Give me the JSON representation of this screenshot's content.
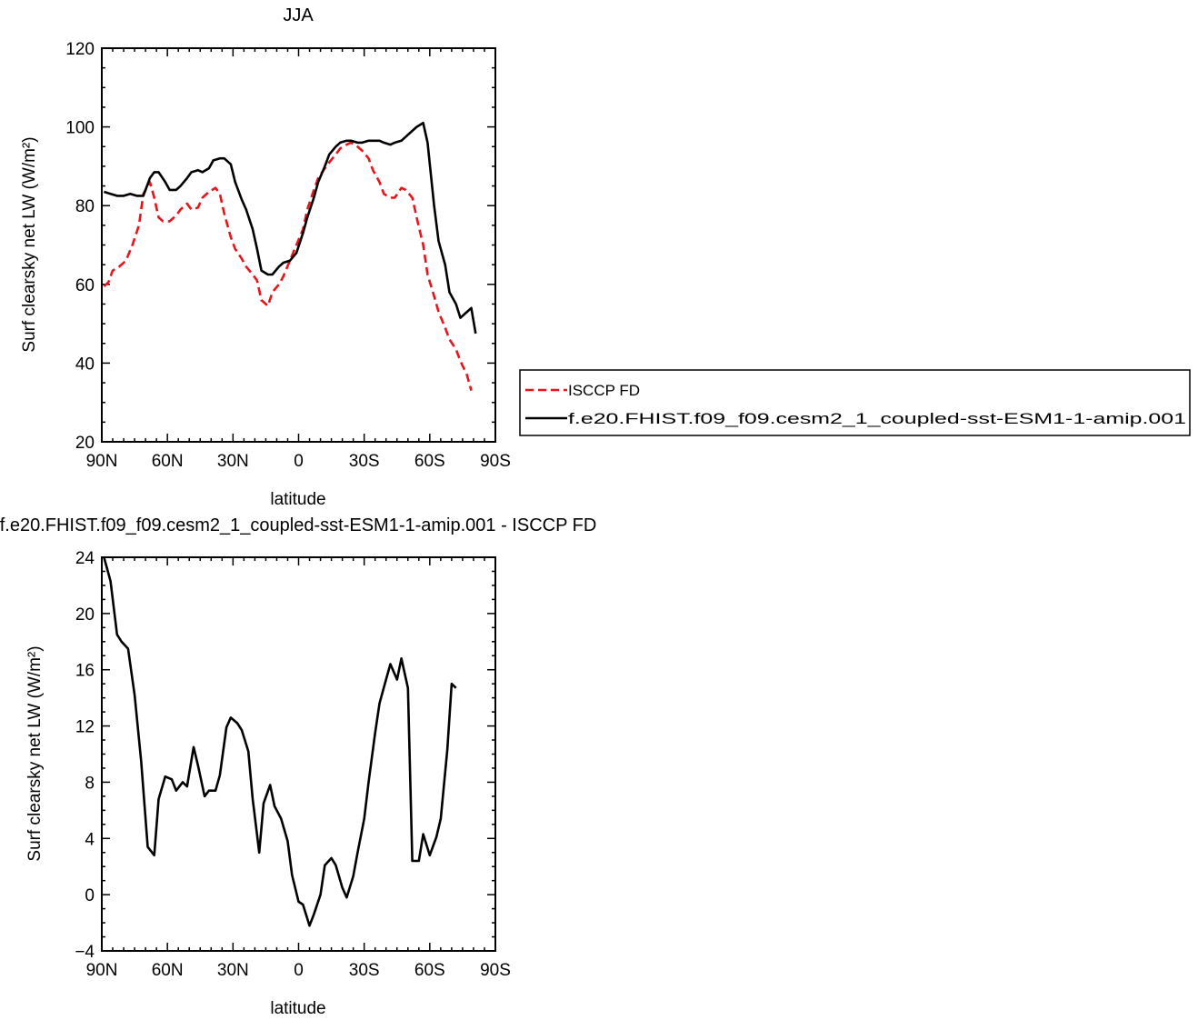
{
  "chart_data": [
    {
      "type": "line",
      "title": "JJA",
      "xlabel": "latitude",
      "ylabel": "Surf clearsky net LW (W/m²)",
      "xlim": [
        90,
        -90
      ],
      "ylim": [
        20,
        120
      ],
      "xticks": [
        90,
        60,
        30,
        0,
        -30,
        -60,
        -90
      ],
      "xtick_labels": [
        "90N",
        "60N",
        "30N",
        "0",
        "30S",
        "60S",
        "90S"
      ],
      "yticks": [
        20,
        40,
        60,
        80,
        100,
        120
      ],
      "ytick_labels": [
        "20",
        "40",
        "60",
        "80",
        "100",
        "120"
      ],
      "legend_position": "right",
      "series": [
        {
          "name": "ISCCP FD",
          "color": "#e8141b",
          "style": "dashed",
          "points": [
            [
              89,
              59.5
            ],
            [
              87,
              60.5
            ],
            [
              85,
              63.5
            ],
            [
              82,
              64.5
            ],
            [
              79,
              66
            ],
            [
              76,
              70
            ],
            [
              73,
              75
            ],
            [
              71,
              83
            ],
            [
              68,
              86
            ],
            [
              66,
              82
            ],
            [
              64,
              77
            ],
            [
              62,
              76
            ],
            [
              59,
              76
            ],
            [
              56,
              77.5
            ],
            [
              54,
              79
            ],
            [
              51,
              80.5
            ],
            [
              49,
              79
            ],
            [
              46,
              79.5
            ],
            [
              44,
              82
            ],
            [
              41,
              83.5
            ],
            [
              38,
              84.5
            ],
            [
              36,
              83
            ],
            [
              34,
              78
            ],
            [
              31,
              72
            ],
            [
              29,
              69
            ],
            [
              26,
              66.5
            ],
            [
              24,
              64.5
            ],
            [
              21,
              62.5
            ],
            [
              19,
              61
            ],
            [
              17,
              56
            ],
            [
              14,
              54.5
            ],
            [
              12,
              58
            ],
            [
              9,
              60
            ],
            [
              7,
              62
            ],
            [
              4,
              66
            ],
            [
              1,
              70
            ],
            [
              -2,
              74
            ],
            [
              -4,
              79
            ],
            [
              -7,
              84
            ],
            [
              -9,
              87
            ],
            [
              -12,
              89.5
            ],
            [
              -14,
              91
            ],
            [
              -17,
              93
            ],
            [
              -19,
              94.5
            ],
            [
              -22,
              95.5
            ],
            [
              -24,
              96
            ],
            [
              -27,
              95
            ],
            [
              -29,
              94
            ],
            [
              -32,
              92
            ],
            [
              -34,
              89
            ],
            [
              -37,
              86
            ],
            [
              -39,
              83
            ],
            [
              -42,
              82
            ],
            [
              -44,
              82
            ],
            [
              -47,
              84.5
            ],
            [
              -49,
              84
            ],
            [
              -52,
              82
            ],
            [
              -54,
              77
            ],
            [
              -57,
              70
            ],
            [
              -59,
              62.5
            ],
            [
              -62,
              57
            ],
            [
              -64,
              53
            ],
            [
              -67,
              49
            ],
            [
              -69,
              46
            ],
            [
              -72,
              43.5
            ],
            [
              -74,
              40.5
            ],
            [
              -77,
              37
            ],
            [
              -79,
              33
            ]
          ]
        },
        {
          "name": "f.e20.FHIST.f09_f09.cesm2_1_coupled-sst-ESM1-1-amip.001",
          "color": "#000000",
          "style": "solid",
          "points": [
            [
              89,
              83.5
            ],
            [
              86,
              83
            ],
            [
              83,
              82.5
            ],
            [
              80,
              82.5
            ],
            [
              77,
              83
            ],
            [
              74,
              82.5
            ],
            [
              71,
              82.5
            ],
            [
              68,
              87
            ],
            [
              66,
              88.5
            ],
            [
              64,
              88.5
            ],
            [
              61,
              86
            ],
            [
              59,
              84
            ],
            [
              56,
              84
            ],
            [
              54,
              85
            ],
            [
              51,
              87
            ],
            [
              49,
              88.5
            ],
            [
              46,
              89
            ],
            [
              44,
              88.5
            ],
            [
              41,
              89.5
            ],
            [
              39,
              91.5
            ],
            [
              36,
              92
            ],
            [
              34,
              92
            ],
            [
              31,
              90.5
            ],
            [
              29,
              86
            ],
            [
              26,
              81.5
            ],
            [
              24,
              79
            ],
            [
              21,
              74
            ],
            [
              19,
              69
            ],
            [
              17,
              63.5
            ],
            [
              14,
              62.5
            ],
            [
              12,
              62.5
            ],
            [
              9,
              64.5
            ],
            [
              7,
              65.5
            ],
            [
              4,
              66
            ],
            [
              1,
              68
            ],
            [
              -2,
              73
            ],
            [
              -4,
              77
            ],
            [
              -7,
              82
            ],
            [
              -9,
              86
            ],
            [
              -12,
              90
            ],
            [
              -14,
              93
            ],
            [
              -17,
              95
            ],
            [
              -19,
              96
            ],
            [
              -22,
              96.5
            ],
            [
              -24,
              96.5
            ],
            [
              -27,
              96
            ],
            [
              -29,
              96
            ],
            [
              -32,
              96.5
            ],
            [
              -34,
              96.5
            ],
            [
              -37,
              96.5
            ],
            [
              -39,
              96
            ],
            [
              -42,
              95.5
            ],
            [
              -44,
              96
            ],
            [
              -47,
              96.5
            ],
            [
              -49,
              97.5
            ],
            [
              -52,
              99
            ],
            [
              -54,
              100
            ],
            [
              -57,
              101
            ],
            [
              -59,
              96
            ],
            [
              -62,
              80
            ],
            [
              -64,
              71
            ],
            [
              -67,
              65
            ],
            [
              -69,
              58
            ],
            [
              -72,
              55
            ],
            [
              -74,
              51.5
            ],
            [
              -77,
              53
            ],
            [
              -79,
              54
            ],
            [
              -81,
              47.5
            ]
          ]
        }
      ]
    },
    {
      "type": "line",
      "title": "f.e20.FHIST.f09_f09.cesm2_1_coupled-sst-ESM1-1-amip.001 - ISCCP FD",
      "xlabel": "latitude",
      "ylabel": "Surf clearsky net LW (W/m²)",
      "xlim": [
        90,
        -90
      ],
      "ylim": [
        -4,
        24
      ],
      "xticks": [
        90,
        60,
        30,
        0,
        -30,
        -60,
        -90
      ],
      "xtick_labels": [
        "90N",
        "60N",
        "30N",
        "0",
        "30S",
        "60S",
        "90S"
      ],
      "yticks": [
        -4,
        0,
        4,
        8,
        12,
        16,
        20,
        24
      ],
      "ytick_labels": [
        "−4",
        "0",
        "4",
        "8",
        "12",
        "16",
        "20",
        "24"
      ],
      "series": [
        {
          "color": "#000000",
          "style": "solid",
          "points": [
            [
              89,
              24
            ],
            [
              86,
              22.3
            ],
            [
              83,
              18.5
            ],
            [
              81,
              18
            ],
            [
              78,
              17.5
            ],
            [
              75,
              14.2
            ],
            [
              72,
              9.5
            ],
            [
              69,
              3.4
            ],
            [
              66,
              2.8
            ],
            [
              64,
              6.8
            ],
            [
              61,
              8.4
            ],
            [
              58,
              8.2
            ],
            [
              56,
              7.4
            ],
            [
              53,
              8
            ],
            [
              51,
              7.7
            ],
            [
              48,
              10.5
            ],
            [
              46,
              9.2
            ],
            [
              43,
              7
            ],
            [
              41,
              7.4
            ],
            [
              38,
              7.4
            ],
            [
              36,
              8.5
            ],
            [
              33,
              11.9
            ],
            [
              31,
              12.6
            ],
            [
              28,
              12.2
            ],
            [
              26,
              11.7
            ],
            [
              23,
              10.2
            ],
            [
              21,
              6.8
            ],
            [
              18,
              3
            ],
            [
              16,
              6.5
            ],
            [
              13,
              7.8
            ],
            [
              11,
              6.3
            ],
            [
              8,
              5.4
            ],
            [
              5,
              3.8
            ],
            [
              3,
              1.4
            ],
            [
              0,
              -0.5
            ],
            [
              -2,
              -0.7
            ],
            [
              -5,
              -2.2
            ],
            [
              -7,
              -1.4
            ],
            [
              -10,
              0
            ],
            [
              -12,
              2.1
            ],
            [
              -15,
              2.6
            ],
            [
              -17,
              2.1
            ],
            [
              -20,
              0.5
            ],
            [
              -22,
              -0.2
            ],
            [
              -25,
              1.3
            ],
            [
              -27,
              3
            ],
            [
              -30,
              5.4
            ],
            [
              -32,
              8
            ],
            [
              -35,
              11.5
            ],
            [
              -37,
              13.6
            ],
            [
              -40,
              15.3
            ],
            [
              -42,
              16.4
            ],
            [
              -45,
              15.3
            ],
            [
              -47,
              16.8
            ],
            [
              -50,
              14.7
            ],
            [
              -52,
              2.4
            ],
            [
              -55,
              2.4
            ],
            [
              -57,
              4.3
            ],
            [
              -60,
              2.8
            ],
            [
              -63,
              4.1
            ],
            [
              -65,
              5.4
            ],
            [
              -68,
              10.3
            ],
            [
              -70,
              15
            ],
            [
              -72,
              14.7
            ]
          ]
        }
      ]
    }
  ],
  "legend": {
    "entries": [
      "ISCCP FD",
      "f.e20.FHIST.f09_f09.cesm2_1_coupled-sst-ESM1-1-amip.001"
    ]
  }
}
